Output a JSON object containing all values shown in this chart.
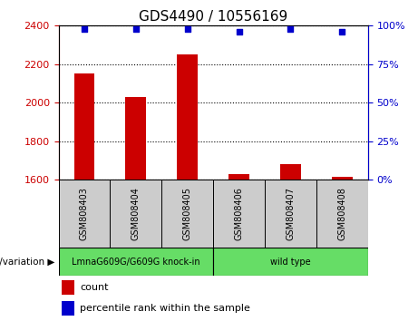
{
  "title": "GDS4490 / 10556169",
  "samples": [
    "GSM808403",
    "GSM808404",
    "GSM808405",
    "GSM808406",
    "GSM808407",
    "GSM808408"
  ],
  "counts": [
    2150,
    2030,
    2250,
    1630,
    1680,
    1615
  ],
  "percentiles": [
    98,
    98,
    98,
    96,
    98,
    96
  ],
  "ylim_left": [
    1600,
    2400
  ],
  "yticks_left": [
    1600,
    1800,
    2000,
    2200,
    2400
  ],
  "ylim_right": [
    0,
    100
  ],
  "yticks_right": [
    0,
    25,
    50,
    75,
    100
  ],
  "groups": [
    {
      "label": "LmnaG609G/G609G knock-in",
      "indices": [
        0,
        1,
        2
      ],
      "color": "#66DD66"
    },
    {
      "label": "wild type",
      "indices": [
        3,
        4,
        5
      ],
      "color": "#66DD66"
    }
  ],
  "bar_color": "#CC0000",
  "dot_color": "#0000CC",
  "bar_width": 0.4,
  "sample_bg_color": "#CCCCCC",
  "left_tick_color": "#CC0000",
  "right_tick_color": "#0000CC",
  "group_label": "genotype/variation",
  "legend_count": "count",
  "legend_percentile": "percentile rank within the sample",
  "title_fontsize": 11,
  "tick_fontsize": 8,
  "label_fontsize": 8
}
